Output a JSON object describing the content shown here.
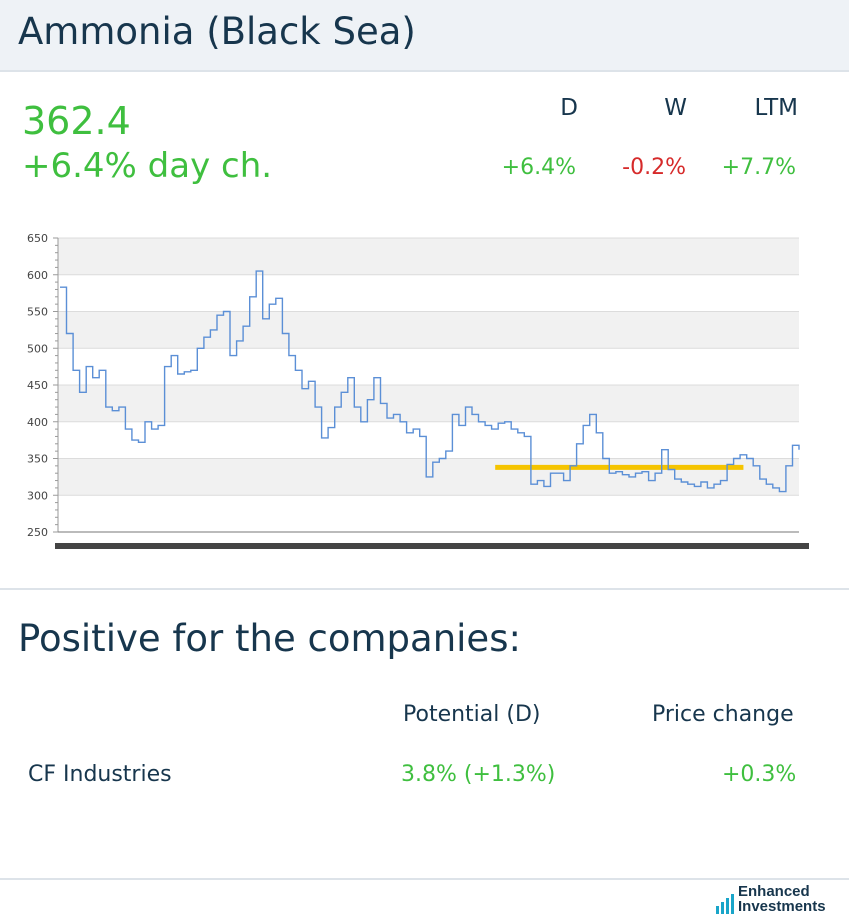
{
  "header": {
    "title": "Ammonia (Black Sea)"
  },
  "quote": {
    "price": "362.4",
    "day_change": "+6.4% day ch."
  },
  "periods": {
    "headers": [
      "D",
      "W",
      "LTM"
    ],
    "values": [
      "+6.4%",
      "-0.2%",
      "+7.7%"
    ],
    "value_colors": [
      "#3fbf3f",
      "#d62a2a",
      "#3fbf3f"
    ]
  },
  "chart_data": {
    "type": "line",
    "ylim": [
      250,
      650
    ],
    "yticks": [
      "650",
      "600",
      "550",
      "500",
      "450",
      "400",
      "350",
      "300",
      "250"
    ],
    "grid": "horizontal bands",
    "line_color": "#5b8fd6",
    "reference_line": {
      "value": 338,
      "color": "#f5c400",
      "x_start_fraction": 0.59,
      "x_end_fraction": 0.925
    },
    "series": [
      {
        "values": [
          583,
          520,
          470,
          440,
          475,
          460,
          470,
          420,
          415,
          420,
          390,
          375,
          372,
          400,
          390,
          395,
          475,
          490,
          465,
          468,
          470,
          500,
          515,
          525,
          545,
          550,
          490,
          510,
          530,
          570,
          605,
          540,
          560,
          568,
          520,
          490,
          470,
          445,
          455,
          420,
          378,
          392,
          420,
          440,
          460,
          420,
          400,
          430,
          460,
          425,
          405,
          410,
          400,
          385,
          390,
          380,
          325,
          345,
          350,
          360,
          410,
          395,
          420,
          410,
          400,
          395,
          390,
          398,
          400,
          390,
          385,
          380,
          315,
          320,
          312,
          330,
          330,
          320,
          340,
          370,
          395,
          410,
          385,
          350,
          330,
          332,
          328,
          325,
          330,
          332,
          320,
          330,
          362,
          335,
          322,
          318,
          315,
          312,
          318,
          310,
          315,
          320,
          342,
          350,
          355,
          350,
          340,
          322,
          315,
          310,
          305,
          340,
          368,
          362
        ]
      }
    ]
  },
  "section": {
    "title": "Positive for the companies:",
    "columns": [
      "Potential (D)",
      "Price change"
    ],
    "rows": [
      {
        "company": "CF Industries",
        "potential": "3.8% (+1.3%)",
        "price_change": "+0.3%"
      }
    ]
  },
  "logo": {
    "line1": "Enhanced",
    "line2": "Investments",
    "icon": "bar-chart-icon"
  }
}
